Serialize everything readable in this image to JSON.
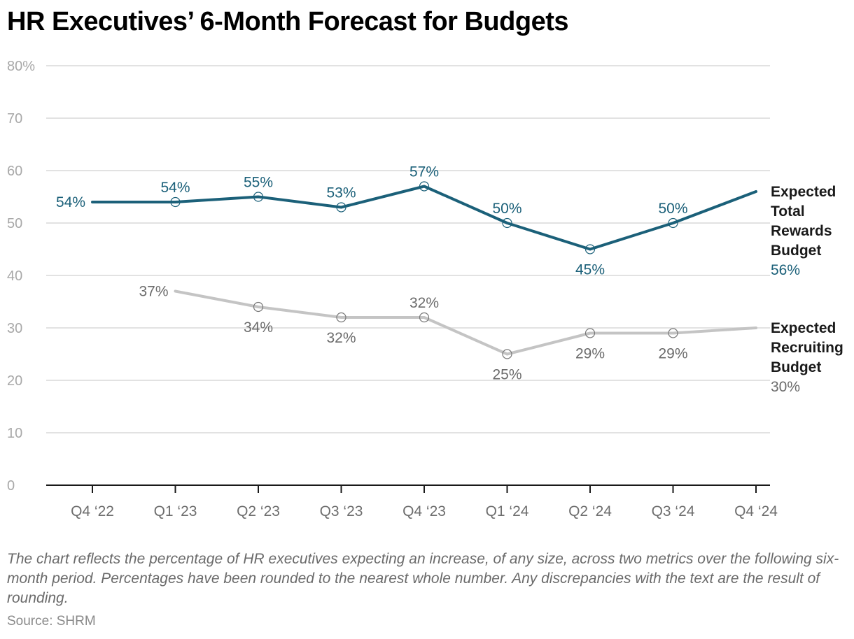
{
  "chart_data": {
    "type": "line",
    "title": "HR Executives’ 6-Month Forecast for Budgets",
    "xlabel": "",
    "ylabel": "",
    "ylim": [
      0,
      80
    ],
    "yticks": [
      0,
      10,
      20,
      30,
      40,
      50,
      60,
      70,
      80
    ],
    "ytick_labels": [
      "0",
      "10",
      "20",
      "30",
      "40",
      "50",
      "60",
      "70",
      "80%"
    ],
    "grid": true,
    "legend": "right (direct labels at line ends)",
    "categories": [
      "Q4 ‘22",
      "Q1 ‘23",
      "Q2 ‘23",
      "Q3 ‘23",
      "Q4 ‘23",
      "Q1 ‘24",
      "Q2 ‘24",
      "Q3 ‘24",
      "Q4 ‘24"
    ],
    "series": [
      {
        "name": "Expected Total Rewards Budget",
        "name_lines": [
          "Expected",
          "Total",
          "Rewards",
          "Budget"
        ],
        "color": "#1b6079",
        "label_color": "#1b6079",
        "values": [
          54,
          54,
          55,
          53,
          57,
          50,
          45,
          50,
          56
        ],
        "labels": [
          "54%",
          "54%",
          "55%",
          "53%",
          "57%",
          "50%",
          "45%",
          "50%",
          "56%"
        ],
        "label_pos": [
          "left",
          "above",
          "above",
          "above",
          "above",
          "above",
          "below",
          "above",
          "end"
        ]
      },
      {
        "name": "Expected Recruiting Budget",
        "name_lines": [
          "Expected",
          "Recruiting",
          "Budget"
        ],
        "color": "#c4c4c4",
        "label_color": "#6b6b6b",
        "values": [
          null,
          37,
          34,
          32,
          32,
          25,
          29,
          29,
          30
        ],
        "labels": [
          null,
          "37%",
          "34%",
          "32%",
          "32%",
          "25%",
          "29%",
          "29%",
          "30%"
        ],
        "label_pos": [
          null,
          "left",
          "below",
          "below",
          "above",
          "below",
          "below",
          "below",
          "end"
        ]
      }
    ]
  },
  "footer": {
    "note": "The chart reflects the percentage of HR executives expecting an increase, of any size, across two metrics over the following six-month period. Percentages have been rounded to the nearest whole number. Any discrepancies with the text are the result of rounding.",
    "source": "Source: SHRM"
  }
}
